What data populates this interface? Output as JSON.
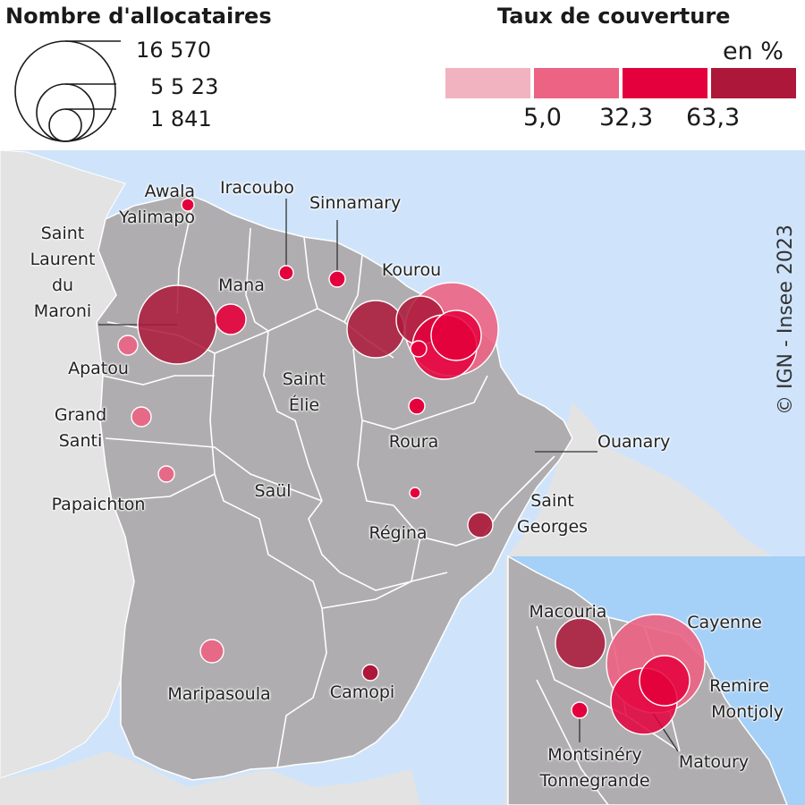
{
  "size_legend": {
    "title": "Nombre d'allocataires",
    "values": [
      "16 570",
      "5 5 23",
      "1 841"
    ]
  },
  "color_legend": {
    "title": "Taux de couverture",
    "unit": "en %",
    "ticks": [
      "5,0",
      "32,3",
      "63,3"
    ],
    "colors": [
      "#f2b3c1",
      "#ec6383",
      "#e4003c",
      "#ad1739"
    ]
  },
  "credit": "© IGN - Insee 2023",
  "map_colors": {
    "sea": "#cfe4fb",
    "inset_sea": "#a5d0f7",
    "land": "#afadaf",
    "outside_land": "#e3e3e3"
  },
  "communes": [
    {
      "label_lines": [
        "Awala",
        "Yalimapo"
      ]
    },
    {
      "label_lines": [
        "Iracoubo"
      ]
    },
    {
      "label_lines": [
        "Sinnamary"
      ]
    },
    {
      "label_lines": [
        "Saint",
        "Laurent",
        "du",
        "Maroni"
      ]
    },
    {
      "label_lines": [
        "Mana"
      ]
    },
    {
      "label_lines": [
        "Kourou"
      ]
    },
    {
      "label_lines": [
        "Apatou"
      ]
    },
    {
      "label_lines": [
        "Saint",
        "Élie"
      ]
    },
    {
      "label_lines": [
        "Grand",
        "Santi"
      ]
    },
    {
      "label_lines": [
        "Roura"
      ]
    },
    {
      "label_lines": [
        "Ouanary"
      ]
    },
    {
      "label_lines": [
        "Papaichton"
      ]
    },
    {
      "label_lines": [
        "Saül"
      ]
    },
    {
      "label_lines": [
        "Saint",
        "Georges"
      ]
    },
    {
      "label_lines": [
        "Régina"
      ]
    },
    {
      "label_lines": [
        "Maripasoula"
      ]
    },
    {
      "label_lines": [
        "Camopi"
      ]
    }
  ],
  "inset_communes": [
    {
      "label_lines": [
        "Macouria"
      ]
    },
    {
      "label_lines": [
        "Cayenne"
      ]
    },
    {
      "label_lines": [
        "Remire",
        "Montjoly"
      ]
    },
    {
      "label_lines": [
        "Montsinéry",
        "Tonnegrande"
      ]
    },
    {
      "label_lines": [
        "Matoury"
      ]
    }
  ]
}
